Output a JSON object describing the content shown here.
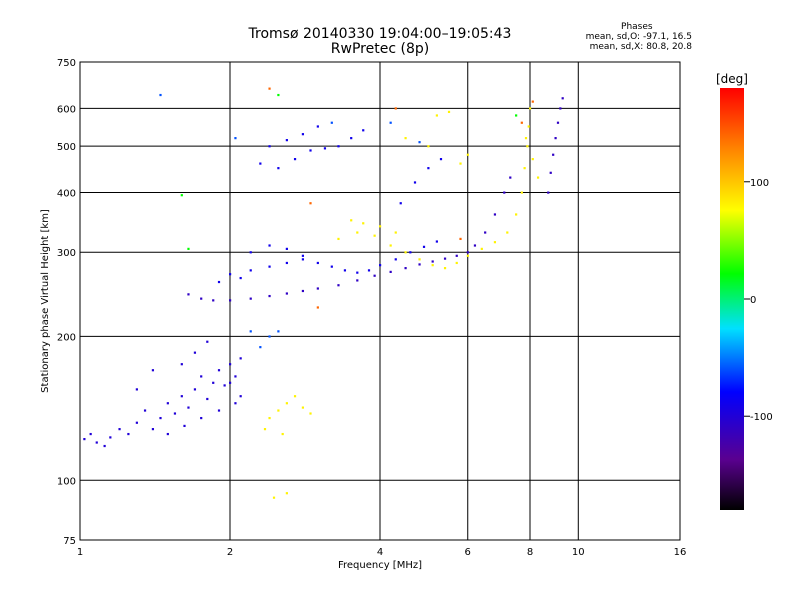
{
  "title_line1": "Tromsø 20140330 19:04:00–19:05:43",
  "title_line2": "RwPretec (8p)",
  "phase_info": {
    "heading": "Phases",
    "line_o": "mean, sd,O: -97.1, 16.5",
    "line_x": "mean, sd,X:  80.8, 20.8"
  },
  "chart_data": {
    "type": "scatter",
    "xlabel": "Frequency [MHz]",
    "ylabel": "Stationary phase Virtual Height [km]",
    "xscale": "log2",
    "yscale": "log",
    "xlim": [
      1,
      16
    ],
    "ylim": [
      75,
      750
    ],
    "xticks": [
      1,
      2,
      4,
      6,
      8,
      10,
      16
    ],
    "yticks": [
      75,
      100,
      200,
      300,
      400,
      500,
      600,
      750
    ],
    "grid": true,
    "colorbar": {
      "label": "[deg]",
      "range": [
        -180,
        180
      ],
      "ticks": [
        100,
        0,
        -100
      ]
    },
    "point_groups": [
      {
        "phase": -100,
        "points": [
          [
            1.02,
            122
          ],
          [
            1.05,
            125
          ],
          [
            1.08,
            120
          ],
          [
            1.12,
            118
          ],
          [
            1.15,
            123
          ],
          [
            1.2,
            128
          ],
          [
            1.25,
            125
          ],
          [
            1.3,
            132
          ],
          [
            1.35,
            140
          ],
          [
            1.4,
            128
          ],
          [
            1.45,
            135
          ],
          [
            1.5,
            145
          ],
          [
            1.55,
            138
          ],
          [
            1.6,
            150
          ],
          [
            1.65,
            142
          ],
          [
            1.7,
            155
          ],
          [
            1.75,
            165
          ],
          [
            1.8,
            148
          ],
          [
            1.85,
            160
          ],
          [
            1.9,
            170
          ],
          [
            1.95,
            158
          ],
          [
            2.0,
            175
          ],
          [
            2.05,
            165
          ],
          [
            2.1,
            180
          ],
          [
            1.3,
            155
          ],
          [
            1.4,
            170
          ],
          [
            1.6,
            175
          ],
          [
            1.7,
            185
          ],
          [
            1.8,
            195
          ],
          [
            2.0,
            160
          ],
          [
            2.1,
            150
          ],
          [
            1.5,
            125
          ],
          [
            1.62,
            130
          ],
          [
            1.75,
            135
          ],
          [
            1.9,
            140
          ],
          [
            2.05,
            145
          ]
        ]
      },
      {
        "phase": -110,
        "points": [
          [
            1.65,
            245
          ],
          [
            1.75,
            240
          ],
          [
            1.85,
            238
          ],
          [
            2.0,
            238
          ],
          [
            2.2,
            240
          ],
          [
            2.4,
            243
          ],
          [
            2.6,
            246
          ],
          [
            2.8,
            249
          ],
          [
            3.0,
            252
          ],
          [
            3.3,
            256
          ],
          [
            3.6,
            262
          ],
          [
            3.9,
            268
          ],
          [
            4.2,
            273
          ],
          [
            4.5,
            278
          ],
          [
            4.8,
            283
          ],
          [
            5.1,
            287
          ],
          [
            5.4,
            291
          ],
          [
            5.7,
            295
          ],
          [
            6.0,
            300
          ],
          [
            6.2,
            310
          ],
          [
            6.5,
            330
          ],
          [
            6.8,
            360
          ],
          [
            7.1,
            400
          ],
          [
            7.3,
            430
          ],
          [
            8.7,
            400
          ],
          [
            8.8,
            440
          ],
          [
            8.9,
            480
          ],
          [
            9.0,
            520
          ],
          [
            9.1,
            560
          ],
          [
            9.2,
            600
          ],
          [
            9.3,
            630
          ]
        ]
      },
      {
        "phase": -90,
        "points": [
          [
            2.0,
            270
          ],
          [
            2.2,
            275
          ],
          [
            2.4,
            280
          ],
          [
            2.6,
            285
          ],
          [
            2.8,
            290
          ],
          [
            3.0,
            285
          ],
          [
            3.2,
            280
          ],
          [
            3.4,
            275
          ],
          [
            3.6,
            272
          ],
          [
            3.8,
            275
          ],
          [
            4.0,
            282
          ],
          [
            4.3,
            290
          ],
          [
            4.6,
            300
          ],
          [
            4.9,
            308
          ],
          [
            5.2,
            316
          ],
          [
            2.2,
            300
          ],
          [
            2.4,
            310
          ],
          [
            2.6,
            305
          ],
          [
            2.8,
            295
          ],
          [
            1.9,
            260
          ],
          [
            2.1,
            265
          ],
          [
            2.3,
            460
          ],
          [
            2.5,
            450
          ],
          [
            2.7,
            470
          ],
          [
            2.9,
            490
          ],
          [
            3.1,
            495
          ],
          [
            3.3,
            500
          ],
          [
            3.5,
            520
          ],
          [
            3.7,
            540
          ],
          [
            2.4,
            500
          ],
          [
            2.6,
            515
          ],
          [
            2.8,
            530
          ],
          [
            3.0,
            550
          ],
          [
            4.4,
            380
          ],
          [
            4.7,
            420
          ],
          [
            5.0,
            450
          ],
          [
            5.3,
            470
          ]
        ]
      },
      {
        "phase": -60,
        "points": [
          [
            2.3,
            190
          ],
          [
            2.4,
            200
          ],
          [
            2.5,
            205
          ],
          [
            2.2,
            205
          ],
          [
            1.45,
            640
          ],
          [
            2.05,
            520
          ],
          [
            3.2,
            560
          ],
          [
            4.2,
            560
          ],
          [
            4.8,
            510
          ]
        ]
      },
      {
        "phase": 80,
        "points": [
          [
            2.4,
            135
          ],
          [
            2.5,
            140
          ],
          [
            2.6,
            145
          ],
          [
            2.7,
            150
          ],
          [
            2.8,
            142
          ],
          [
            2.9,
            138
          ],
          [
            2.35,
            128
          ],
          [
            2.55,
            125
          ],
          [
            2.45,
            92
          ],
          [
            2.6,
            94
          ],
          [
            3.3,
            320
          ],
          [
            3.6,
            330
          ],
          [
            3.9,
            325
          ],
          [
            4.2,
            310
          ],
          [
            4.5,
            300
          ],
          [
            4.8,
            290
          ],
          [
            5.1,
            282
          ],
          [
            5.4,
            278
          ],
          [
            5.7,
            285
          ],
          [
            6.0,
            295
          ],
          [
            6.4,
            305
          ],
          [
            6.8,
            315
          ],
          [
            7.2,
            330
          ],
          [
            7.5,
            360
          ],
          [
            7.7,
            400
          ],
          [
            7.8,
            450
          ],
          [
            7.9,
            500
          ],
          [
            7.95,
            550
          ],
          [
            8.0,
            600
          ],
          [
            7.85,
            520
          ],
          [
            8.1,
            470
          ],
          [
            8.3,
            430
          ],
          [
            5.0,
            500
          ],
          [
            5.2,
            580
          ],
          [
            5.5,
            590
          ],
          [
            4.5,
            520
          ],
          [
            3.5,
            350
          ],
          [
            3.7,
            345
          ],
          [
            4.0,
            340
          ],
          [
            4.3,
            330
          ],
          [
            5.8,
            460
          ],
          [
            6.0,
            480
          ]
        ]
      },
      {
        "phase": 140,
        "points": [
          [
            2.4,
            660
          ],
          [
            2.9,
            380
          ],
          [
            5.8,
            320
          ],
          [
            4.3,
            600
          ],
          [
            3.0,
            230
          ],
          [
            8.1,
            620
          ],
          [
            7.7,
            560
          ]
        ]
      },
      {
        "phase": 20,
        "points": [
          [
            1.6,
            395
          ],
          [
            1.65,
            305
          ],
          [
            2.5,
            640
          ],
          [
            7.5,
            580
          ]
        ]
      }
    ]
  }
}
